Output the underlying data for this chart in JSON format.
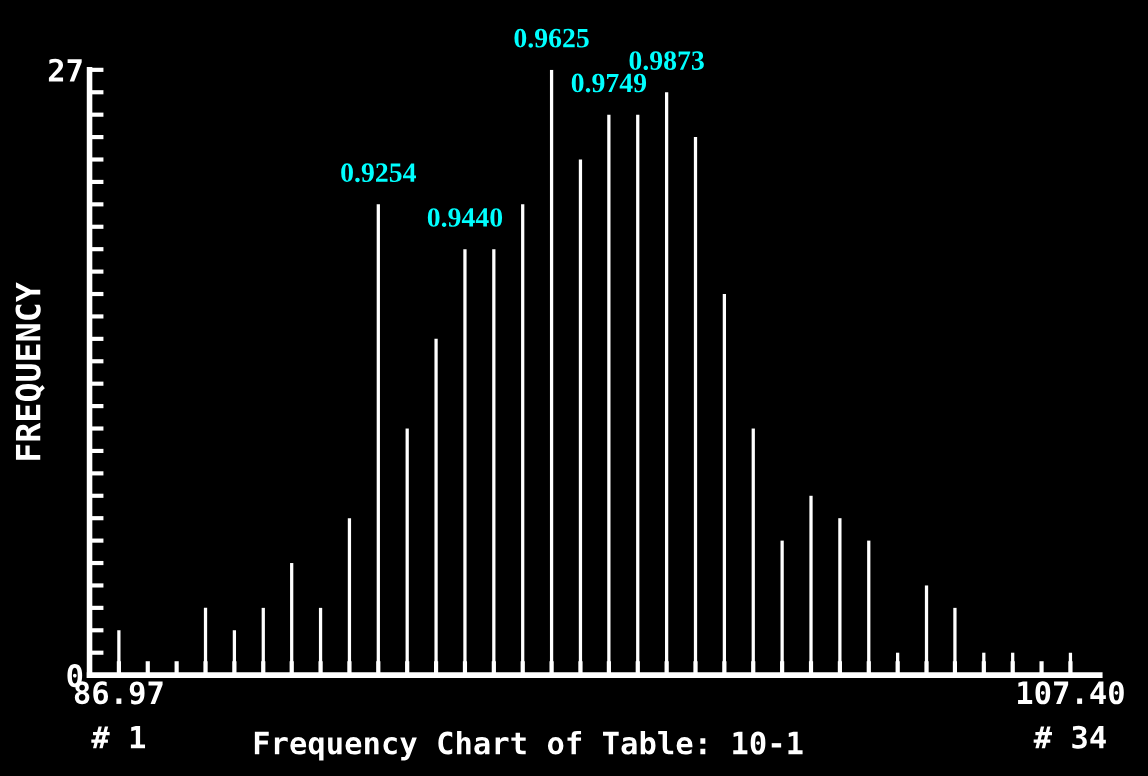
{
  "chart_data": {
    "type": "bar",
    "title": "Frequency Chart of Table: 10-1",
    "ylabel": "FREQUENCY",
    "x": [
      86.97,
      87.59,
      88.21,
      88.83,
      89.45,
      90.07,
      90.68,
      91.3,
      91.92,
      92.54,
      93.16,
      93.78,
      94.4,
      95.02,
      95.64,
      96.26,
      96.88,
      97.49,
      98.11,
      98.73,
      99.35,
      99.97,
      100.59,
      101.21,
      101.83,
      102.45,
      103.07,
      103.69,
      104.31,
      104.92,
      105.54,
      106.16,
      106.78,
      107.4
    ],
    "values": [
      2,
      0,
      0,
      3,
      2,
      3,
      5,
      3,
      7,
      21,
      11,
      15,
      19,
      19,
      21,
      27,
      23,
      25,
      25,
      26,
      24,
      17,
      11,
      6,
      8,
      7,
      6,
      1,
      4,
      3,
      1,
      1,
      0,
      1
    ],
    "color": "#ffffff",
    "xlim": [
      86.34,
      108.03
    ],
    "xticks": [
      86.97,
      {
        "value": 87.59,
        "label": null
      },
      {
        "value": 88.21,
        "label": null
      },
      {
        "value": 88.83,
        "label": null
      },
      {
        "value": 89.45,
        "label": null
      },
      {
        "value": 90.07,
        "label": null
      },
      {
        "value": 90.68,
        "label": null
      },
      {
        "value": 91.3,
        "label": null
      },
      {
        "value": 91.92,
        "label": null
      },
      {
        "value": 92.54,
        "label": null
      },
      {
        "value": 93.16,
        "label": null
      },
      {
        "value": 93.78,
        "label": null
      },
      {
        "value": 94.4,
        "label": null
      },
      {
        "value": 95.02,
        "label": null
      },
      {
        "value": 95.64,
        "label": null
      },
      {
        "value": 96.26,
        "label": null
      },
      {
        "value": 96.88,
        "label": null
      },
      {
        "value": 97.49,
        "label": null
      },
      {
        "value": 98.11,
        "label": null
      },
      {
        "value": 98.73,
        "label": null
      },
      {
        "value": 99.35,
        "label": null
      },
      {
        "value": 99.97,
        "label": null
      },
      {
        "value": 100.59,
        "label": null
      },
      {
        "value": 101.21,
        "label": null
      },
      {
        "value": 101.83,
        "label": null
      },
      {
        "value": 102.45,
        "label": null
      },
      {
        "value": 103.07,
        "label": null
      },
      {
        "value": 103.69,
        "label": null
      },
      {
        "value": 104.31,
        "label": null
      },
      {
        "value": 104.92,
        "label": null
      },
      {
        "value": 105.54,
        "label": null
      },
      {
        "value": 106.16,
        "label": null
      },
      {
        "value": 106.78,
        "label": null
      },
      {
        "value": 107.4,
        "label": "107.40"
      }
    ],
    "ylim": [
      0,
      27
    ],
    "yticks": [
      0,
      {
        "value": 1,
        "label": null
      },
      {
        "value": 2,
        "label": null
      },
      {
        "value": 3,
        "label": null
      },
      {
        "value": 4,
        "label": null
      },
      {
        "value": 5,
        "label": null
      },
      {
        "value": 6,
        "label": null
      },
      {
        "value": 7,
        "label": null
      },
      {
        "value": 8,
        "label": null
      },
      {
        "value": 9,
        "label": null
      },
      {
        "value": 10,
        "label": null
      },
      {
        "value": 11,
        "label": null
      },
      {
        "value": 12,
        "label": null
      },
      {
        "value": 13,
        "label": null
      },
      {
        "value": 14,
        "label": null
      },
      {
        "value": 15,
        "label": null
      },
      {
        "value": 16,
        "label": null
      },
      {
        "value": 17,
        "label": null
      },
      {
        "value": 18,
        "label": null
      },
      {
        "value": 19,
        "label": null
      },
      {
        "value": 20,
        "label": null
      },
      {
        "value": 21,
        "label": null
      },
      {
        "value": 22,
        "label": null
      },
      {
        "value": 23,
        "label": null
      },
      {
        "value": 24,
        "label": null
      },
      {
        "value": 25,
        "label": null
      },
      {
        "value": 26,
        "label": null
      },
      27
    ],
    "annotations": [
      {
        "text": "0.9254",
        "x": 92.54,
        "y": 21
      },
      {
        "text": "0.9440",
        "x": 94.4,
        "y": 19
      },
      {
        "text": "0.9625",
        "x": 96.26,
        "y": 27
      },
      {
        "text": "0.9749",
        "x": 97.49,
        "y": 25
      },
      {
        "text": "0.9873",
        "x": 98.73,
        "y": 26
      },
      "# 1",
      "# 34"
    ],
    "grid": false
  }
}
